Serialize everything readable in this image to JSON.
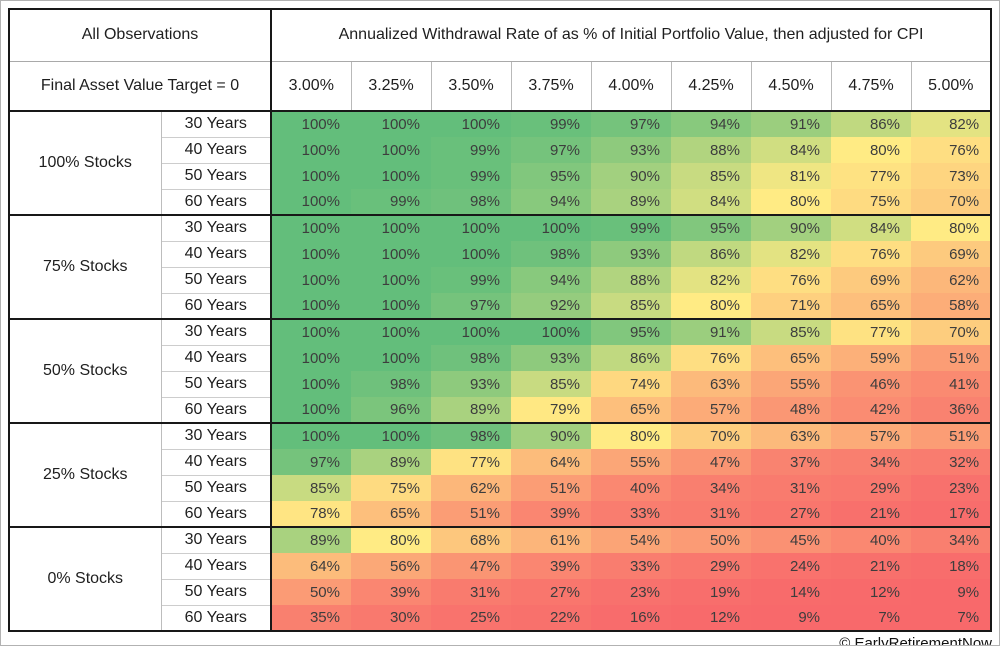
{
  "chart_data": {
    "type": "heatmap",
    "title": "Annualized Withdrawal Rate of as % of Initial Portfolio Value, then adjusted for CPI",
    "scope_label": "All Observations",
    "condition": "Final Asset Value Target = 0",
    "value_suffix": "%",
    "columns": [
      "3.00%",
      "3.25%",
      "3.50%",
      "3.75%",
      "4.00%",
      "4.25%",
      "4.50%",
      "4.75%",
      "5.00%"
    ],
    "row_groups": [
      {
        "label": "100% Stocks",
        "rows": [
          {
            "label": "30 Years",
            "values": [
              100,
              100,
              100,
              99,
              97,
              94,
              91,
              86,
              82
            ]
          },
          {
            "label": "40 Years",
            "values": [
              100,
              100,
              99,
              97,
              93,
              88,
              84,
              80,
              76
            ]
          },
          {
            "label": "50 Years",
            "values": [
              100,
              100,
              99,
              95,
              90,
              85,
              81,
              77,
              73
            ]
          },
          {
            "label": "60 Years",
            "values": [
              100,
              99,
              98,
              94,
              89,
              84,
              80,
              75,
              70
            ]
          }
        ]
      },
      {
        "label": "75% Stocks",
        "rows": [
          {
            "label": "30 Years",
            "values": [
              100,
              100,
              100,
              100,
              99,
              95,
              90,
              84,
              80
            ]
          },
          {
            "label": "40 Years",
            "values": [
              100,
              100,
              100,
              98,
              93,
              86,
              82,
              76,
              69
            ]
          },
          {
            "label": "50 Years",
            "values": [
              100,
              100,
              99,
              94,
              88,
              82,
              76,
              69,
              62
            ]
          },
          {
            "label": "60 Years",
            "values": [
              100,
              100,
              97,
              92,
              85,
              80,
              71,
              65,
              58
            ]
          }
        ]
      },
      {
        "label": "50% Stocks",
        "rows": [
          {
            "label": "30 Years",
            "values": [
              100,
              100,
              100,
              100,
              95,
              91,
              85,
              77,
              70
            ]
          },
          {
            "label": "40 Years",
            "values": [
              100,
              100,
              98,
              93,
              86,
              76,
              65,
              59,
              51
            ]
          },
          {
            "label": "50 Years",
            "values": [
              100,
              98,
              93,
              85,
              74,
              63,
              55,
              46,
              41
            ]
          },
          {
            "label": "60 Years",
            "values": [
              100,
              96,
              89,
              79,
              65,
              57,
              48,
              42,
              36
            ]
          }
        ]
      },
      {
        "label": "25% Stocks",
        "rows": [
          {
            "label": "30 Years",
            "values": [
              100,
              100,
              98,
              90,
              80,
              70,
              63,
              57,
              51
            ]
          },
          {
            "label": "40 Years",
            "values": [
              97,
              89,
              77,
              64,
              55,
              47,
              37,
              34,
              32
            ]
          },
          {
            "label": "50 Years",
            "values": [
              85,
              75,
              62,
              51,
              40,
              34,
              31,
              29,
              23
            ]
          },
          {
            "label": "60 Years",
            "values": [
              78,
              65,
              51,
              39,
              33,
              31,
              27,
              21,
              17
            ]
          }
        ]
      },
      {
        "label": "0% Stocks",
        "rows": [
          {
            "label": "30 Years",
            "values": [
              89,
              80,
              68,
              61,
              54,
              50,
              45,
              40,
              34
            ]
          },
          {
            "label": "40 Years",
            "values": [
              64,
              56,
              47,
              39,
              33,
              29,
              24,
              21,
              18
            ]
          },
          {
            "label": "50 Years",
            "values": [
              50,
              39,
              31,
              27,
              23,
              19,
              14,
              12,
              9
            ]
          },
          {
            "label": "60 Years",
            "values": [
              35,
              30,
              25,
              22,
              16,
              12,
              9,
              7,
              7
            ]
          }
        ]
      }
    ],
    "color_scale": {
      "min_value": 7,
      "mid_value": 80,
      "max_value": 100,
      "min_color": "#F8696B",
      "mid_color": "#FFEB84",
      "max_color": "#63BE7B",
      "low_exponent": 1.8,
      "high_exponent": 0.75
    },
    "attribution": "© EarlyRetirementNow"
  }
}
